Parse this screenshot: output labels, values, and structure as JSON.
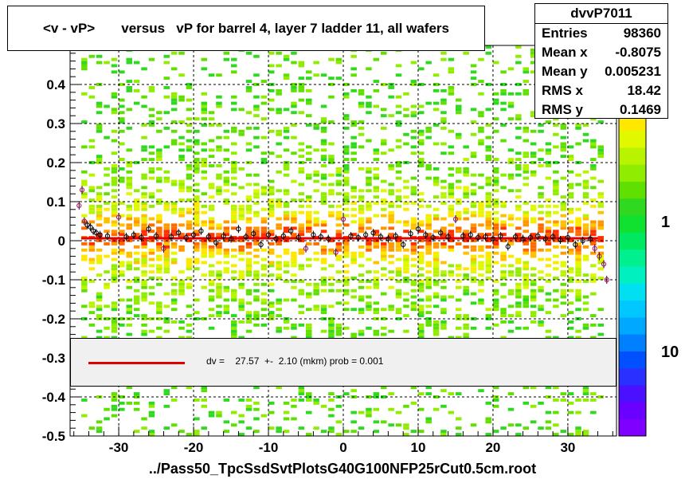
{
  "title": "<v - vP>       versus   vP for barrel 4, layer 7 ladder 11, all wafers",
  "stats": {
    "name": "dvvP7011",
    "rows": [
      {
        "label": "Entries",
        "value": "98360"
      },
      {
        "label": "Mean x",
        "value": "-0.8075"
      },
      {
        "label": "Mean y",
        "value": "0.005231"
      },
      {
        "label": "RMS x",
        "value": "18.42"
      },
      {
        "label": "RMS y",
        "value": "0.1469"
      }
    ]
  },
  "fit_text": "dv =    27.57  +-  2.10 (mkm) prob = 0.001",
  "footer": "../Pass50_TpcSsdSvtPlotsG40G100NFP25rCut0.5cm.root",
  "colors": {
    "fit_line": "#e00000",
    "palette": [
      "#8000ff",
      "#6a00ff",
      "#4a10ff",
      "#2a30ff",
      "#0050ff",
      "#0080ff",
      "#00a8ff",
      "#00c8ff",
      "#00e0f0",
      "#00f0c0",
      "#00f090",
      "#00e860",
      "#10e030",
      "#30d820",
      "#60e000",
      "#90ec00",
      "#b8f400",
      "#e0f800",
      "#ffe800",
      "#ffc000",
      "#ff9800",
      "#ff6a00",
      "#ff3000"
    ]
  },
  "chart_data": {
    "type": "heatmap",
    "x_range": [
      -36.5,
      36.5
    ],
    "y_range": [
      -0.5,
      0.5
    ],
    "x_ticks": [
      -30,
      -20,
      -10,
      0,
      10,
      20,
      30
    ],
    "y_ticks": [
      -0.5,
      -0.4,
      -0.3,
      -0.2,
      -0.1,
      0,
      0.1,
      0.2,
      0.3,
      0.4
    ],
    "y_tick_labels": [
      "-0.5",
      "-0.4",
      "-0.3",
      "-0.2",
      "-0.1",
      "0",
      "0.1",
      "0.2",
      "0.3",
      "0.4"
    ],
    "color_scale_labels": [
      {
        "label": "10",
        "value": 10
      },
      {
        "label": "1",
        "value": 1
      }
    ],
    "fit_line": {
      "x_start": -35,
      "x_end": 34,
      "y": 0.006
    },
    "profile_points": [
      {
        "x": -35.3,
        "y": 0.09
      },
      {
        "x": -34.9,
        "y": 0.13
      },
      {
        "x": -34.6,
        "y": 0.05
      },
      {
        "x": -34.2,
        "y": 0.04
      },
      {
        "x": -33.8,
        "y": 0.035
      },
      {
        "x": -33.4,
        "y": 0.025
      },
      {
        "x": -33.0,
        "y": 0.02
      },
      {
        "x": -32.5,
        "y": 0.015
      },
      {
        "x": -31.5,
        "y": 0.012
      },
      {
        "x": -30.0,
        "y": 0.06
      },
      {
        "x": -29.0,
        "y": 0.01
      },
      {
        "x": -28.0,
        "y": 0.015
      },
      {
        "x": -27.0,
        "y": 0.008
      },
      {
        "x": -26.0,
        "y": 0.03
      },
      {
        "x": -25.0,
        "y": 0.012
      },
      {
        "x": -24.0,
        "y": -0.02
      },
      {
        "x": -23.0,
        "y": 0.01
      },
      {
        "x": -22.0,
        "y": 0.02
      },
      {
        "x": -21.0,
        "y": 0.008
      },
      {
        "x": -20.0,
        "y": 0.015
      },
      {
        "x": -19.0,
        "y": 0.025
      },
      {
        "x": -18.0,
        "y": 0.01
      },
      {
        "x": -17.0,
        "y": -0.005
      },
      {
        "x": -16.0,
        "y": 0.012
      },
      {
        "x": -15.0,
        "y": 0.005
      },
      {
        "x": -14.0,
        "y": 0.03
      },
      {
        "x": -13.0,
        "y": 0.01
      },
      {
        "x": -12.0,
        "y": 0.018
      },
      {
        "x": -11.0,
        "y": -0.01
      },
      {
        "x": -10.0,
        "y": 0.015
      },
      {
        "x": -9.0,
        "y": 0.005
      },
      {
        "x": -8.0,
        "y": 0.012
      },
      {
        "x": -7.0,
        "y": 0.025
      },
      {
        "x": -6.0,
        "y": 0.008
      },
      {
        "x": -5.0,
        "y": -0.02
      },
      {
        "x": -4.0,
        "y": 0.015
      },
      {
        "x": -3.0,
        "y": 0.01
      },
      {
        "x": -2.0,
        "y": 0.005
      },
      {
        "x": -1.0,
        "y": -0.03
      },
      {
        "x": 0.0,
        "y": 0.055
      },
      {
        "x": 1.0,
        "y": 0.012
      },
      {
        "x": 2.0,
        "y": 0.008
      },
      {
        "x": 3.0,
        "y": 0.015
      },
      {
        "x": 4.0,
        "y": 0.02
      },
      {
        "x": 5.0,
        "y": 0.01
      },
      {
        "x": 6.0,
        "y": 0.005
      },
      {
        "x": 7.0,
        "y": 0.012
      },
      {
        "x": 8.0,
        "y": -0.01
      },
      {
        "x": 9.0,
        "y": 0.018
      },
      {
        "x": 10.0,
        "y": 0.03
      },
      {
        "x": 11.0,
        "y": 0.015
      },
      {
        "x": 12.0,
        "y": 0.008
      },
      {
        "x": 13.0,
        "y": 0.02
      },
      {
        "x": 14.0,
        "y": 0.01
      },
      {
        "x": 15.0,
        "y": 0.055
      },
      {
        "x": 16.0,
        "y": 0.012
      },
      {
        "x": 17.0,
        "y": 0.015
      },
      {
        "x": 18.0,
        "y": 0.008
      },
      {
        "x": 19.0,
        "y": 0.01
      },
      {
        "x": 20.0,
        "y": 0.005
      },
      {
        "x": 21.0,
        "y": 0.012
      },
      {
        "x": 22.0,
        "y": -0.015
      },
      {
        "x": 23.0,
        "y": 0.01
      },
      {
        "x": 24.0,
        "y": 0.005
      },
      {
        "x": 25.0,
        "y": 0.008
      },
      {
        "x": 26.0,
        "y": 0.012
      },
      {
        "x": 27.0,
        "y": 0.005
      },
      {
        "x": 28.0,
        "y": 0.01
      },
      {
        "x": 29.0,
        "y": 0.002
      },
      {
        "x": 30.0,
        "y": 0.008
      },
      {
        "x": 31.0,
        "y": -0.01
      },
      {
        "x": 32.0,
        "y": 0.0
      },
      {
        "x": 33.0,
        "y": 0.005
      },
      {
        "x": 33.6,
        "y": -0.02
      },
      {
        "x": 34.2,
        "y": -0.04
      },
      {
        "x": 34.8,
        "y": -0.06
      },
      {
        "x": 35.2,
        "y": -0.1
      }
    ]
  }
}
